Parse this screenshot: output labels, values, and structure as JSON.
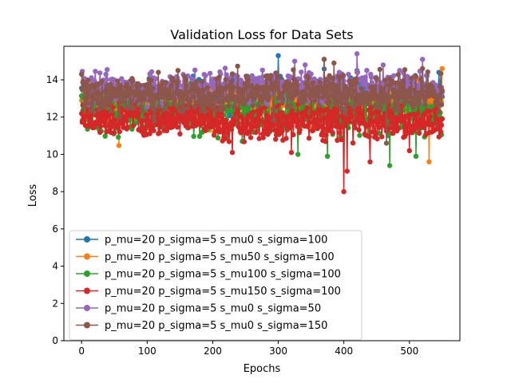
{
  "chart_data": {
    "type": "line",
    "title": "Validation Loss for Data Sets",
    "xlabel": "Epochs",
    "ylabel": "Loss",
    "xlim": [
      -27,
      577
    ],
    "ylim": [
      0,
      15.8
    ],
    "xticks": [
      0,
      100,
      200,
      300,
      400,
      500
    ],
    "yticks": [
      0,
      2,
      4,
      6,
      8,
      10,
      12,
      14
    ],
    "grid": false,
    "legend": "lower-left",
    "marker": "circle",
    "x_range": [
      0,
      550
    ],
    "series": [
      {
        "name": "p_mu=20 p_sigma=5 s_mu0 s_sigma=100",
        "color": "#1f77b4",
        "mean": 13.0,
        "spread": 0.55,
        "min": 11.4,
        "max": 15.3,
        "extremes": [
          [
            300,
            15.3
          ],
          [
            170,
            14.2
          ],
          [
            230,
            14.3
          ],
          [
            420,
            14.5
          ],
          [
            545,
            14.4
          ]
        ]
      },
      {
        "name": "p_mu=20 p_sigma=5 s_mu50 s_sigma=100",
        "color": "#ff7f0e",
        "mean": 12.7,
        "spread": 0.6,
        "min": 9.6,
        "max": 14.6,
        "extremes": [
          [
            530,
            9.6
          ],
          [
            195,
            11.3
          ],
          [
            550,
            14.6
          ],
          [
            420,
            14.4
          ]
        ]
      },
      {
        "name": "p_mu=20 p_sigma=5 s_mu100 s_sigma=100",
        "color": "#2ca02c",
        "mean": 12.3,
        "spread": 0.7,
        "min": 9.4,
        "max": 14.2,
        "extremes": [
          [
            470,
            9.4
          ],
          [
            375,
            9.9
          ],
          [
            510,
            9.9
          ],
          [
            330,
            10.0
          ],
          [
            245,
            10.7
          ]
        ]
      },
      {
        "name": "p_mu=20 p_sigma=5 s_mu150 s_sigma=100",
        "color": "#d62728",
        "mean": 11.9,
        "spread": 0.6,
        "min": 8.0,
        "max": 13.2,
        "extremes": [
          [
            400,
            8.0
          ],
          [
            405,
            9.1
          ],
          [
            440,
            9.6
          ],
          [
            230,
            10.1
          ],
          [
            320,
            10.1
          ],
          [
            500,
            10.2
          ]
        ]
      },
      {
        "name": "p_mu=20 p_sigma=5 s_mu0 s_sigma=50",
        "color": "#9467bd",
        "mean": 13.6,
        "spread": 0.5,
        "min": 11.5,
        "max": 15.4,
        "extremes": [
          [
            420,
            15.4
          ],
          [
            520,
            15.1
          ],
          [
            325,
            15.0
          ],
          [
            370,
            15.1
          ],
          [
            460,
            14.8
          ],
          [
            0,
            14.3
          ]
        ]
      },
      {
        "name": "p_mu=20 p_sigma=5 s_mu0 s_sigma=150",
        "color": "#8c564b",
        "mean": 13.2,
        "spread": 0.55,
        "min": 10.6,
        "max": 15.1,
        "extremes": [
          [
            370,
            15.1
          ],
          [
            385,
            14.9
          ],
          [
            0,
            14.3
          ],
          [
            465,
            10.6
          ],
          [
            520,
            14.6
          ]
        ]
      }
    ]
  }
}
